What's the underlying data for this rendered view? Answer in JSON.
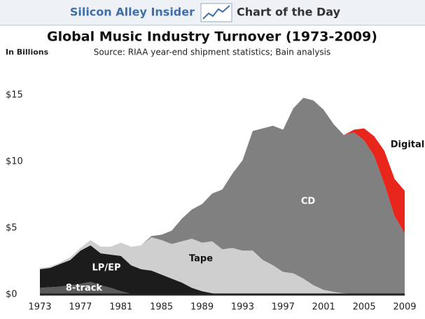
{
  "header": {
    "brand": "Silicon Alley Insider",
    "section": "Chart of the Day"
  },
  "chart_data": {
    "type": "stacked_area",
    "title": "Global Music Industry Turnover (1973-2009)",
    "subtitle": "Source: RIAA year-end shipment statistics; Bain analysis",
    "y_label": "In Billions",
    "x": [
      1973,
      1974,
      1975,
      1976,
      1977,
      1978,
      1979,
      1980,
      1981,
      1982,
      1983,
      1984,
      1985,
      1986,
      1987,
      1988,
      1989,
      1990,
      1991,
      1992,
      1993,
      1994,
      1995,
      1996,
      1997,
      1998,
      1999,
      2000,
      2001,
      2002,
      2003,
      2004,
      2005,
      2006,
      2007,
      2008,
      2009
    ],
    "xlim": [
      1973,
      2009
    ],
    "xticks": [
      1973,
      1977,
      1981,
      1985,
      1989,
      1993,
      1997,
      2001,
      2005,
      2009
    ],
    "ylim": [
      0,
      15
    ],
    "yticks": [
      {
        "value": 0,
        "label": "$0"
      },
      {
        "value": 5,
        "label": "$5"
      },
      {
        "value": 10,
        "label": "$10"
      },
      {
        "value": 15,
        "label": "$15"
      }
    ],
    "series": [
      {
        "name": "8-track",
        "color": "#5a5a5a",
        "values": [
          0.5,
          0.55,
          0.6,
          0.7,
          0.8,
          0.95,
          0.7,
          0.5,
          0.25,
          0.05,
          0,
          0,
          0,
          0,
          0,
          0,
          0,
          0,
          0,
          0,
          0,
          0,
          0,
          0,
          0,
          0,
          0,
          0,
          0,
          0,
          0,
          0,
          0,
          0,
          0,
          0,
          0
        ]
      },
      {
        "name": "LP/EP",
        "color": "#1c1c1c",
        "values": [
          1.4,
          1.45,
          1.7,
          1.9,
          2.5,
          2.75,
          2.4,
          2.5,
          2.65,
          2.15,
          1.9,
          1.8,
          1.5,
          1.2,
          0.9,
          0.5,
          0.25,
          0.1,
          0.05,
          0,
          0,
          0,
          0,
          0,
          0,
          0,
          0,
          0,
          0,
          0,
          0,
          0,
          0,
          0,
          0,
          0,
          0
        ]
      },
      {
        "name": "Tape",
        "color": "#cfcfcf",
        "values": [
          0.1,
          0.1,
          0.1,
          0.2,
          0.2,
          0.4,
          0.5,
          0.6,
          1.0,
          1.4,
          1.8,
          2.5,
          2.6,
          2.6,
          3.1,
          3.7,
          3.65,
          3.9,
          3.35,
          3.5,
          3.3,
          3.3,
          2.6,
          2.2,
          1.7,
          1.6,
          1.2,
          0.7,
          0.35,
          0.2,
          0.1,
          0.05,
          0,
          0,
          0,
          0,
          0
        ]
      },
      {
        "name": "CD",
        "color": "#808080",
        "values": [
          0,
          0,
          0,
          0,
          0,
          0,
          0,
          0,
          0,
          0,
          0,
          0.1,
          0.4,
          1.0,
          1.7,
          2.2,
          2.9,
          3.6,
          4.5,
          5.6,
          6.8,
          9.0,
          9.9,
          10.5,
          10.7,
          12.4,
          13.6,
          13.9,
          13.55,
          12.6,
          11.9,
          12.15,
          11.6,
          10.4,
          8.3,
          5.9,
          4.6
        ]
      },
      {
        "name": "Digital",
        "color": "#e8261c",
        "values": [
          0,
          0,
          0,
          0,
          0,
          0,
          0,
          0,
          0,
          0,
          0,
          0,
          0,
          0,
          0,
          0,
          0,
          0,
          0,
          0,
          0,
          0,
          0,
          0,
          0,
          0,
          0,
          0,
          0,
          0,
          0,
          0.2,
          0.9,
          1.5,
          2.5,
          2.8,
          3.2
        ]
      }
    ]
  }
}
